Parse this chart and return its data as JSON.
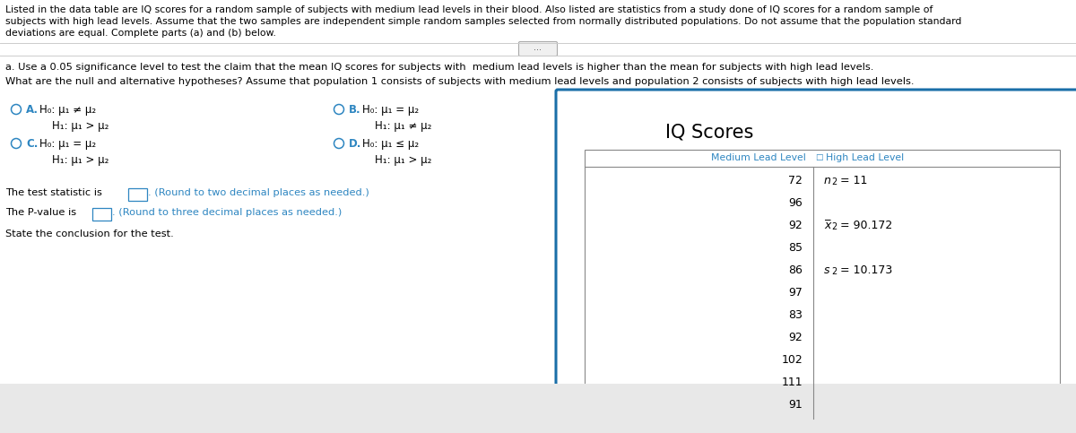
{
  "bg_color": "#ffffff",
  "text_color": "#000000",
  "blue_color": "#1a5276",
  "option_color": "#2e86c1",
  "header_line1": "Listed in the data table are IQ scores for a random sample of subjects with medium lead levels in their blood. Also listed are statistics from a study done of IQ scores for a random sample of",
  "header_line2": "subjects with high lead levels. Assume that the two samples are independent simple random samples selected from normally distributed populations. Do not assume that the population standard",
  "header_line3": "deviations are equal. Complete parts (a) and (b) below.",
  "part_a_text": "a. Use a 0.05 significance level to test the claim that the mean IQ scores for subjects with  medium lead levels is higher than the mean for subjects with high lead levels.",
  "hypotheses_question": "What are the null and alternative hypotheses? Assume that population 1 consists of subjects with medium lead levels and population 2 consists of subjects with high lead levels.",
  "test_stat_text": "The test statistic is",
  "test_stat_suffix": ". (Round to two decimal places as needed.)",
  "pvalue_text": "The P-value is",
  "pvalue_suffix": ". (Round to three decimal places as needed.)",
  "conclusion_text": "State the conclusion for the test.",
  "iq_title": "IQ Scores",
  "col1_header": "Medium Lead Level",
  "col2_header": "High Lead Level",
  "medium_scores": [
    72,
    96,
    92,
    85,
    86,
    97,
    83,
    92,
    102,
    111,
    91
  ],
  "panel_border_color": "#1a6fa8",
  "table_header_color": "#2e86c1",
  "divider_color": "#888888",
  "gray_bottom": "#e8e8e8",
  "dots_border": "#aaaaaa",
  "dots_fill": "#f0f0f0"
}
